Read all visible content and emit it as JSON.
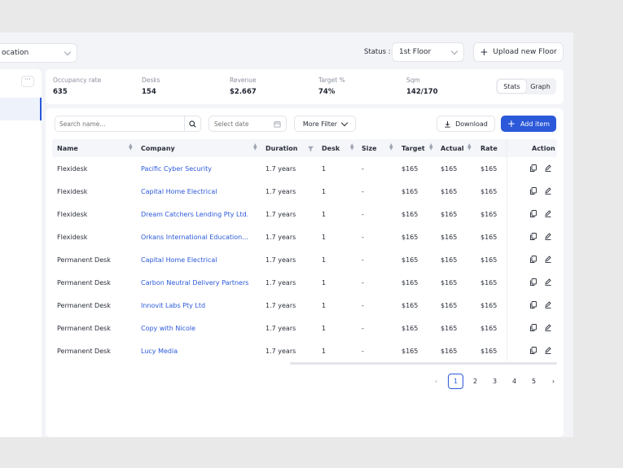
{
  "topbar": {
    "location_value": "ocation",
    "status_label": "Status :",
    "floor_value": "1st Floor",
    "upload_label": "Upload new Floor"
  },
  "left_panel": {
    "more_label": "···"
  },
  "stats": [
    {
      "label": "Occupancy rate",
      "value": "635"
    },
    {
      "label": "Desks",
      "value": "154"
    },
    {
      "label": "Revenue",
      "value": "$2.667"
    },
    {
      "label": "Target %",
      "value": "74%"
    },
    {
      "label": "Sqm",
      "value": "142/170"
    }
  ],
  "view_toggle": {
    "stats": "Stats",
    "graph": "Graph"
  },
  "toolbar": {
    "search_placeholder": "Search name...",
    "date_placeholder": "Select date",
    "more_filter": "More Filter",
    "download": "Download",
    "add_item": "Add item"
  },
  "columns": [
    "Name",
    "Company",
    "Duration",
    "Desk",
    "Size",
    "Target",
    "Actual",
    "Rate",
    "Action"
  ],
  "rows": [
    {
      "name": "Flexidesk",
      "company": "Pacific Cyber Security",
      "duration": "1.7 years",
      "desk": "1",
      "size": "-",
      "target": "$165",
      "actual": "$165",
      "rate": "$165"
    },
    {
      "name": "Flexidesk",
      "company": "Capital Home Electrical",
      "duration": "1.7 years",
      "desk": "1",
      "size": "-",
      "target": "$165",
      "actual": "$165",
      "rate": "$165"
    },
    {
      "name": "Flexidesk",
      "company": "Dream Catchers Lending Pty Ltd.",
      "duration": "1.7 years",
      "desk": "1",
      "size": "-",
      "target": "$165",
      "actual": "$165",
      "rate": "$165"
    },
    {
      "name": "Flexidesk",
      "company": "Orkans International Education...",
      "duration": "1.7 years",
      "desk": "1",
      "size": "-",
      "target": "$165",
      "actual": "$165",
      "rate": "$165"
    },
    {
      "name": "Permanent Desk",
      "company": "Capital Home Electrical",
      "duration": "1.7 years",
      "desk": "1",
      "size": "-",
      "target": "$165",
      "actual": "$165",
      "rate": "$165"
    },
    {
      "name": "Permanent Desk",
      "company": "Carbon Neutral Delivery Partners",
      "duration": "1.7 years",
      "desk": "1",
      "size": "-",
      "target": "$165",
      "actual": "$165",
      "rate": "$165"
    },
    {
      "name": "Permanent Desk",
      "company": "Innovit Labs Pty Ltd",
      "duration": "1.7 years",
      "desk": "1",
      "size": "-",
      "target": "$165",
      "actual": "$165",
      "rate": "$165"
    },
    {
      "name": "Permanent Desk",
      "company": "Copy with Nicole",
      "duration": "1.7 years",
      "desk": "1",
      "size": "-",
      "target": "$165",
      "actual": "$165",
      "rate": "$165"
    },
    {
      "name": "Permanent Desk",
      "company": "Lucy Media",
      "duration": "1.7 years",
      "desk": "1",
      "size": "-",
      "target": "$165",
      "actual": "$165",
      "rate": "$165"
    }
  ],
  "pagination": {
    "pages": [
      "1",
      "2",
      "3",
      "4",
      "5"
    ],
    "current": "1"
  },
  "colors": {
    "accent": "#2b59d9",
    "background": "#e9e9ea",
    "panel": "#ffffff"
  }
}
